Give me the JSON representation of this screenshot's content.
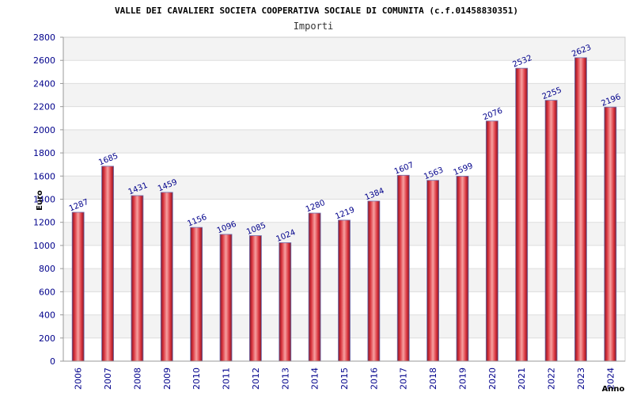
{
  "chart_data": {
    "type": "bar",
    "title": "VALLE DEI CAVALIERI SOCIETA COOPERATIVA SOCIALE DI COMUNITA (c.f.01458830351)",
    "subtitle": "Importi",
    "xlabel": "Anno",
    "ylabel": "Euro",
    "categories": [
      "2006",
      "2007",
      "2008",
      "2009",
      "2010",
      "2011",
      "2012",
      "2013",
      "2014",
      "2015",
      "2016",
      "2017",
      "2018",
      "2019",
      "2020",
      "2021",
      "2022",
      "2023",
      "2024"
    ],
    "values": [
      1287,
      1685,
      1431,
      1459,
      1156,
      1096,
      1085,
      1024,
      1280,
      1219,
      1384,
      1607,
      1563,
      1599,
      2076,
      2532,
      2255,
      2623,
      2196
    ],
    "ylim": [
      0,
      2800
    ],
    "yticks": [
      0,
      200,
      400,
      600,
      800,
      1000,
      1200,
      1400,
      1600,
      1800,
      2000,
      2200,
      2400,
      2600,
      2800
    ],
    "grid": true,
    "bar_color": "#e03a3e",
    "label_color": "#00008B"
  }
}
